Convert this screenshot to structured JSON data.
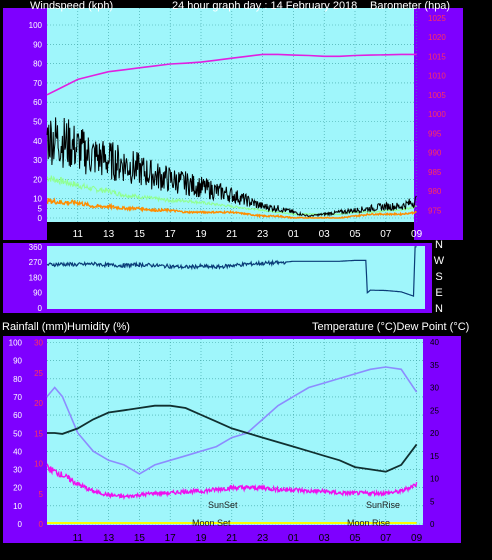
{
  "header": {
    "left_label": "Windspeed (kph)",
    "center_label": "24 hour graph day : 14 February 2018",
    "right_label": "Barometer (hpa)"
  },
  "compass": [
    "N",
    "W",
    "S",
    "E",
    "N"
  ],
  "lower_header": {
    "left_label_1": "Rainfall (mm)",
    "left_label_2": "Humidity (%)",
    "right_label": "Temperature (°C)Dew Point (°C)"
  },
  "annotations": {
    "sunset": "SunSet",
    "sunrise": "SunRise",
    "moonset": "Moon Set",
    "moonrise": "Moon Rise"
  },
  "colors": {
    "plot_bg": "#9ff6fb",
    "frame": "#7e00ff",
    "wind": "#000000",
    "gust": "#ff8c00",
    "avg_wind": "#90ff90",
    "barometer": "#e020e0",
    "direction": "#0a3c78",
    "temperature": "#103030",
    "dewpoint": "#8c8cff",
    "humidity": "#ee10ee",
    "rain": "#ffff00",
    "grid": "#3aa0a0",
    "axis_label_white": "#ffffff",
    "axis_label_red": "#ff3060"
  },
  "chart_data": [
    {
      "type": "line",
      "x_ticks": [
        "11",
        "13",
        "15",
        "17",
        "19",
        "21",
        "23",
        "01",
        "03",
        "05",
        "07",
        "09"
      ],
      "y_left_ticks": [
        "0",
        "5",
        "10",
        "20",
        "30",
        "40",
        "50",
        "60",
        "70",
        "80",
        "90",
        "100"
      ],
      "y_left_range": [
        0,
        100
      ],
      "y_right_ticks": [
        "975",
        "980",
        "985",
        "990",
        "995",
        "1000",
        "1005",
        "1010",
        "1015",
        "1020",
        "1025"
      ],
      "y_right_range": [
        973,
        1027
      ],
      "grid": true,
      "series": [
        {
          "key": "windspeed",
          "axis": "left",
          "x": [
            9,
            10,
            11,
            12,
            13,
            14,
            15,
            16,
            17,
            18,
            19,
            20,
            21,
            22,
            23,
            24,
            25,
            26,
            27,
            28,
            29,
            30,
            31,
            32,
            33
          ],
          "y": [
            42,
            40,
            36,
            32,
            30,
            28,
            25,
            22,
            20,
            18,
            16,
            14,
            12,
            9,
            6,
            5,
            3,
            1,
            2,
            3,
            4,
            5,
            6,
            6,
            9
          ]
        },
        {
          "key": "gust",
          "axis": "left",
          "x": [
            9,
            10,
            11,
            12,
            13,
            14,
            15,
            16,
            17,
            18,
            19,
            20,
            21,
            22,
            23,
            24,
            25,
            26,
            27,
            28,
            29,
            30,
            31,
            32,
            33
          ],
          "y": [
            9,
            8,
            8,
            6,
            6,
            5,
            5,
            4,
            4,
            3,
            3,
            3,
            3,
            2,
            1,
            1,
            0,
            0,
            0,
            0,
            1,
            2,
            2,
            2,
            3
          ]
        },
        {
          "key": "avg_wind",
          "axis": "left",
          "x": [
            9,
            10,
            11,
            12,
            13,
            14,
            15,
            16,
            17,
            18,
            19,
            20,
            21,
            22,
            23,
            24,
            25,
            26,
            27,
            28,
            29,
            30,
            31,
            32,
            33
          ],
          "y": [
            21,
            19,
            17,
            15,
            14,
            12,
            11,
            10,
            9,
            9,
            8,
            7,
            6,
            5,
            4,
            3,
            2,
            2,
            2,
            2,
            3,
            3,
            4,
            4,
            6
          ]
        },
        {
          "key": "barometer",
          "axis": "right",
          "x": [
            9,
            10,
            11,
            12,
            13,
            14,
            15,
            16,
            17,
            18,
            19,
            20,
            21,
            22,
            23,
            24,
            25,
            26,
            27,
            28,
            29,
            30,
            31,
            32,
            33
          ],
          "y": [
            1005,
            1007,
            1009,
            1010,
            1011,
            1011.5,
            1012,
            1012.5,
            1013,
            1013.2,
            1013.5,
            1014,
            1014.5,
            1015,
            1015.5,
            1015.5,
            1015.3,
            1015.2,
            1015,
            1015,
            1015.2,
            1015.3,
            1015.4,
            1015.5,
            1015.5
          ]
        }
      ]
    },
    {
      "type": "line",
      "y_left_ticks": [
        "0",
        "90",
        "180",
        "270",
        "360"
      ],
      "y_range": [
        0,
        360
      ],
      "series": [
        {
          "key": "direction",
          "x": [
            9,
            10,
            11,
            12,
            13,
            14,
            15,
            16,
            17,
            18,
            19,
            20,
            21,
            22,
            23,
            24,
            25,
            26,
            27,
            28,
            29,
            29.7,
            29.8,
            30,
            31,
            32,
            32.8,
            32.9,
            33
          ],
          "y": [
            255,
            258,
            255,
            260,
            252,
            250,
            255,
            250,
            245,
            240,
            245,
            240,
            250,
            258,
            263,
            265,
            275,
            275,
            275,
            275,
            280,
            280,
            90,
            105,
            103,
            95,
            70,
            360,
            360
          ]
        }
      ]
    },
    {
      "type": "line",
      "x_ticks": [
        "11",
        "13",
        "15",
        "17",
        "19",
        "21",
        "23",
        "01",
        "03",
        "05",
        "07",
        "09"
      ],
      "y_left_white_ticks": [
        "0",
        "10",
        "20",
        "30",
        "40",
        "50",
        "60",
        "70",
        "80",
        "90",
        "100"
      ],
      "y_left_red_ticks": [
        "0",
        "5",
        "10",
        "15",
        "20",
        "25",
        "30"
      ],
      "y_right_ticks": [
        "0",
        "5",
        "10",
        "15",
        "20",
        "25",
        "30",
        "35",
        "40"
      ],
      "humidity_range": [
        0,
        100
      ],
      "rain_range": [
        0,
        30
      ],
      "temp_range": [
        0,
        40
      ],
      "grid": true,
      "series": [
        {
          "key": "temperature",
          "axis": "right",
          "x": [
            9,
            9.5,
            10,
            11,
            12,
            13,
            14,
            15,
            16,
            17,
            18,
            19,
            20,
            21,
            22,
            23,
            24,
            25,
            26,
            27,
            28,
            29,
            30,
            31,
            32,
            33
          ],
          "y": [
            20,
            20,
            19.8,
            21,
            23,
            24.5,
            25,
            25.5,
            26,
            26,
            25.5,
            24,
            22.5,
            21,
            20,
            19,
            18,
            17,
            16,
            15,
            14,
            12.5,
            12,
            11.5,
            13,
            17.5
          ]
        },
        {
          "key": "dewpoint",
          "axis": "right",
          "x": [
            9,
            9.5,
            10,
            11,
            12,
            13,
            14,
            15,
            16,
            17,
            18,
            19,
            20,
            21,
            22,
            23,
            24,
            25,
            26,
            27,
            28,
            29,
            30,
            31,
            32,
            33
          ],
          "y": [
            28,
            30,
            28,
            20,
            16,
            14,
            13,
            11,
            13,
            14,
            15,
            16,
            17,
            19,
            20,
            23,
            26,
            28,
            30,
            31,
            32,
            33,
            34,
            34.5,
            34,
            29
          ]
        },
        {
          "key": "humidity",
          "axis": "left",
          "x": [
            9,
            10,
            11,
            12,
            13,
            14,
            15,
            16,
            17,
            18,
            19,
            20,
            21,
            22,
            23,
            24,
            25,
            26,
            27,
            28,
            29,
            30,
            31,
            32,
            33
          ],
          "y": [
            31,
            27,
            22,
            18,
            16,
            15,
            16,
            17,
            17,
            18,
            18,
            19,
            20,
            20,
            20,
            19,
            19,
            18,
            18,
            17,
            17,
            17,
            17,
            18,
            22
          ]
        },
        {
          "key": "rain",
          "axis": "left_red",
          "x": [
            9,
            33
          ],
          "y": [
            0,
            0
          ]
        }
      ]
    }
  ]
}
